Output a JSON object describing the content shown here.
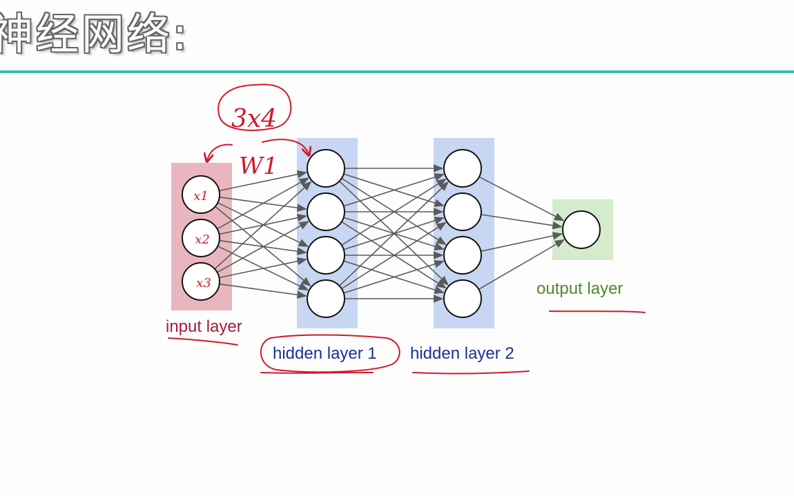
{
  "title": "神经网络:",
  "colors": {
    "title_rule": "#3fbcb1",
    "input_band": "#e9b6bf",
    "hidden_band": "#c7d6f2",
    "output_band": "#d4ebcd",
    "input_label": "#9e1e3a",
    "hidden_label": "#1c2f95",
    "output_label": "#4a8a2e",
    "ink": "#d3182b",
    "edge": "#5a5a5a"
  },
  "layers": {
    "input": {
      "label": "input layer",
      "neurons": [
        "x1",
        "x2",
        "x3"
      ]
    },
    "hidden1": {
      "label": "hidden layer 1",
      "count": 4
    },
    "hidden2": {
      "label": "hidden layer 2",
      "count": 4
    },
    "output": {
      "label": "output layer",
      "count": 1
    }
  },
  "annotations": {
    "matrix_shape": "3x4",
    "weight": "W1"
  }
}
